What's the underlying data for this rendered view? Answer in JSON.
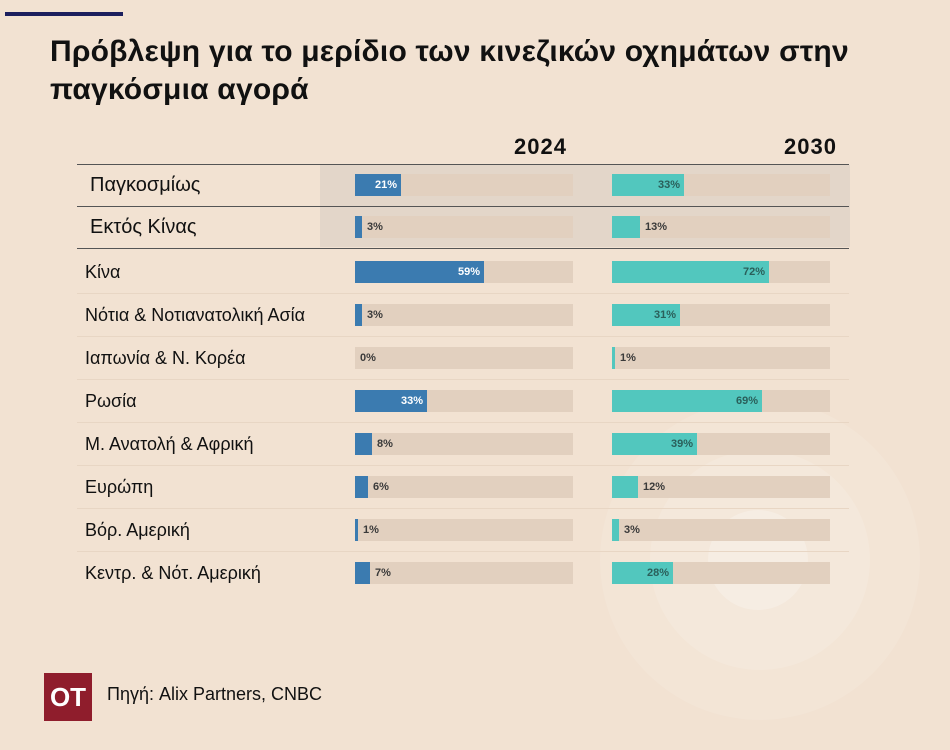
{
  "title": "Πρόβλεψη για το μερίδιο των κινεζικών οχημάτων στην παγκόσμια αγορά",
  "source": "Πηγή: Alix Partners, CNBC",
  "logo_text": "OT",
  "colors": {
    "background": "#f2e2d2",
    "series_2024": "#3b7bb0",
    "series_2030": "#52c7be",
    "track": "#e2d0bf",
    "logo": "#8f1d2c"
  },
  "chart_data": {
    "type": "bar",
    "orientation": "horizontal",
    "value_suffix": "%",
    "xlim": [
      0,
      100
    ],
    "categories": [
      "Παγκοσμίως",
      "Εκτός Κίνας",
      "Κίνα",
      "Νότια & Νοτιανατολική Ασία",
      "Ιαπωνία & Ν. Κορέα",
      "Ρωσία",
      "Μ. Ανατολή & Αφρική",
      "Ευρώπη",
      "Βόρ. Αμερική",
      "Κεντρ. & Νότ. Αμερική"
    ],
    "series": [
      {
        "name": "2024",
        "values": [
          21,
          3,
          59,
          3,
          0,
          33,
          8,
          6,
          1,
          7
        ]
      },
      {
        "name": "2030",
        "values": [
          33,
          13,
          72,
          31,
          1,
          69,
          39,
          12,
          3,
          28
        ]
      }
    ]
  }
}
